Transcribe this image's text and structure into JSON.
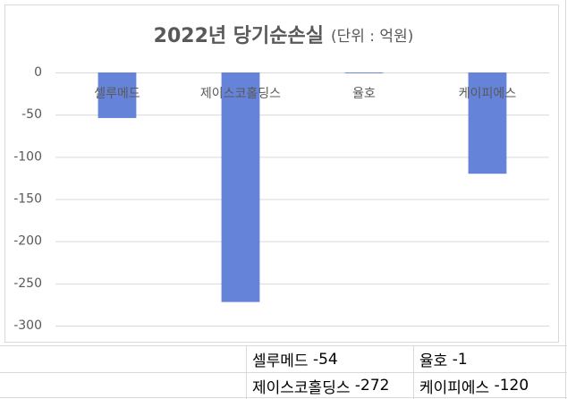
{
  "chart_data": {
    "type": "bar",
    "title": "2022년 당기순손실",
    "subtitle": "(단위 : 억원)",
    "categories": [
      "셀루메드",
      "제이스코홀딩스",
      "율호",
      "케이피에스"
    ],
    "values": [
      -54,
      -272,
      -1,
      -120
    ],
    "color": "#6583d9",
    "ylim": [
      -300,
      0
    ],
    "yticks": [
      0,
      -50,
      -100,
      -150,
      -200,
      -250,
      -300
    ],
    "grid": true
  }
}
